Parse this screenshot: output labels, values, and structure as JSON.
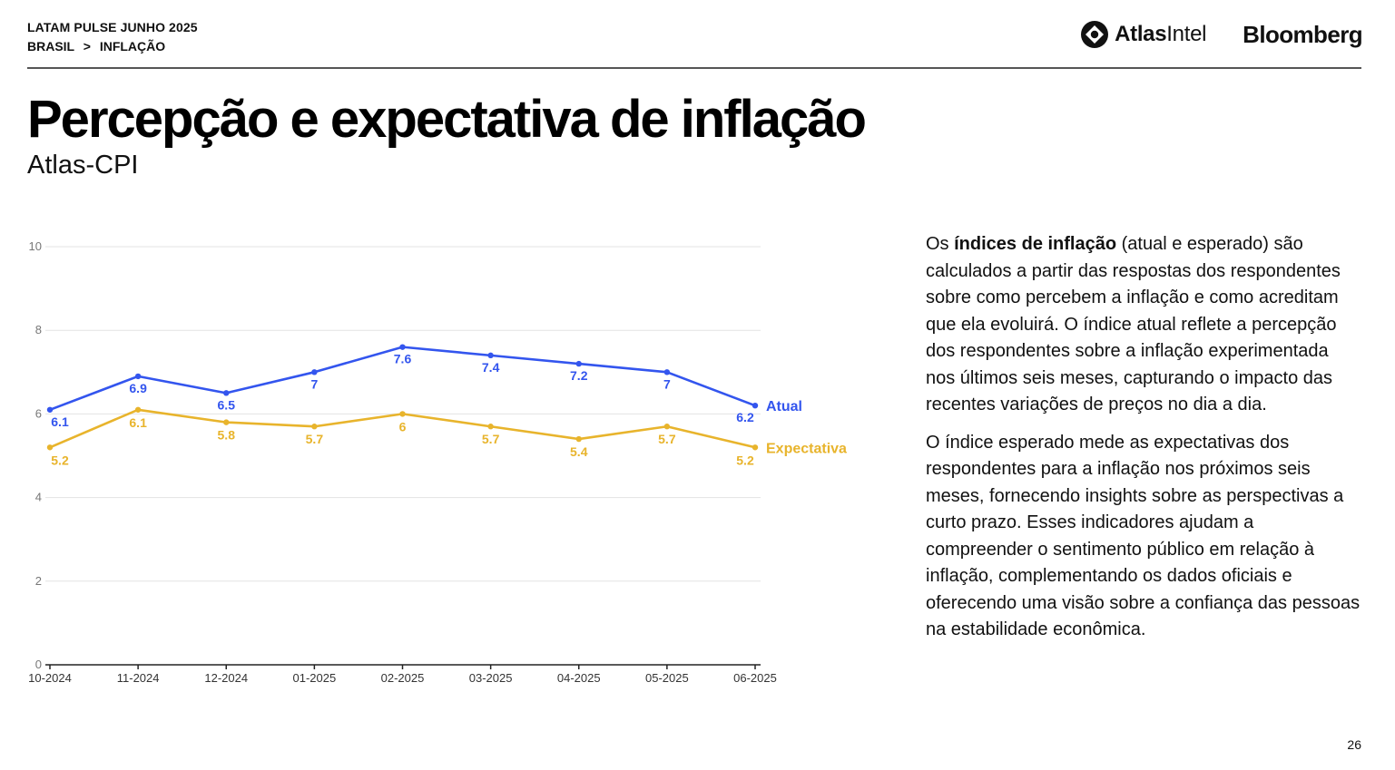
{
  "header": {
    "kicker": "LATAM PULSE JUNHO 2025",
    "breadcrumb": {
      "section": "BRASIL",
      "separator": ">",
      "topic": "INFLAÇÃO"
    },
    "logos": {
      "atlas_bold": "Atlas",
      "atlas_light": "Intel",
      "bloomberg": "Bloomberg"
    }
  },
  "title": "Percepção e expectativa de inflação",
  "subtitle": "Atlas-CPI",
  "chart_data": {
    "type": "line",
    "title": "",
    "xlabel": "",
    "ylabel": "",
    "categories": [
      "10-2024",
      "11-2024",
      "12-2024",
      "01-2025",
      "02-2025",
      "03-2025",
      "04-2025",
      "05-2025",
      "06-2025"
    ],
    "y_ticks": [
      0,
      2,
      4,
      6,
      8,
      10
    ],
    "ylim": [
      0,
      10
    ],
    "grid": true,
    "legend": "series labels at end of lines",
    "series": [
      {
        "name": "Atual",
        "color": "#3355ee",
        "values": [
          6.1,
          6.9,
          6.5,
          7,
          7.6,
          7.4,
          7.2,
          7,
          6.2
        ]
      },
      {
        "name": "Expectativa",
        "color": "#e8b42c",
        "values": [
          5.2,
          6.1,
          5.8,
          5.7,
          6,
          5.7,
          5.4,
          5.7,
          5.2
        ]
      }
    ]
  },
  "description": {
    "p1_prefix": "Os ",
    "p1_bold": "índices de inflação",
    "p1_rest": " (atual e esperado) são calculados a partir das respostas dos respondentes sobre como percebem a inflação e como acreditam que ela evoluirá. O índice atual reflete a percepção dos respondentes sobre a inflação experimentada nos últimos seis meses, capturando o impacto das recentes variações de preços no dia a dia.",
    "p2": "O índice esperado mede as expectativas dos respondentes para a inflação nos próximos seis meses, fornecendo insights sobre as perspectivas a curto prazo. Esses indicadores ajudam a compreender o sentimento público em relação à inflação, complementando os dados oficiais e oferecendo uma visão sobre a confiança das pessoas na estabilidade econômica."
  },
  "page_number": "26"
}
